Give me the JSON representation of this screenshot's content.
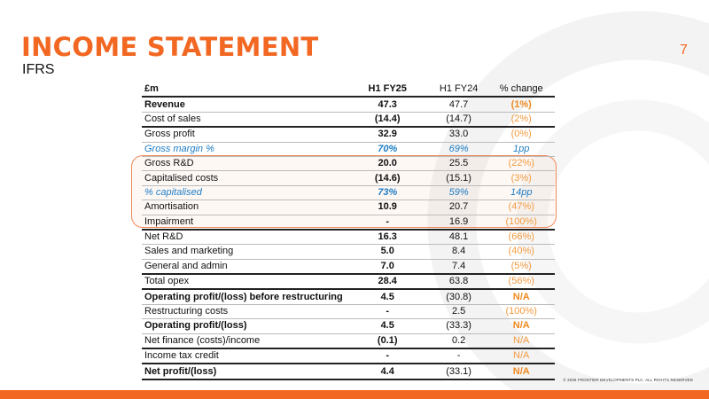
{
  "title": "INCOME STATEMENT",
  "subtitle": "IFRS",
  "page_number": "7",
  "footer": "© 2025 FRONTIER DEVELOPMENTS PLC. ALL RIGHTS RESERVED",
  "colors": {
    "accent": "#F26722",
    "blue": "#1E7CC4",
    "change": "#F39A3E"
  },
  "table": {
    "headers": [
      "£m",
      "H1 FY25",
      "H1 FY24",
      "% change"
    ],
    "rows": [
      {
        "label": "Revenue",
        "fy25": "47.3",
        "fy24": "47.7",
        "change": "(1%)"
      },
      {
        "label": "Cost of sales",
        "fy25": "(14.4)",
        "fy24": "(14.7)",
        "change": "(2%)"
      },
      {
        "label": "Gross profit",
        "fy25": "32.9",
        "fy24": "33.0",
        "change": "(0%)"
      },
      {
        "label": "Gross margin %",
        "fy25": "70%",
        "fy24": "69%",
        "change": "1pp"
      },
      {
        "label": "Gross R&D",
        "fy25": "20.0",
        "fy24": "25.5",
        "change": "(22%)"
      },
      {
        "label": "Capitalised costs",
        "fy25": "(14.6)",
        "fy24": "(15.1)",
        "change": "(3%)"
      },
      {
        "label": "% capitalised",
        "fy25": "73%",
        "fy24": "59%",
        "change": "14pp"
      },
      {
        "label": "Amortisation",
        "fy25": "10.9",
        "fy24": "20.7",
        "change": "(47%)"
      },
      {
        "label": "Impairment",
        "fy25": "-",
        "fy24": "16.9",
        "change": "(100%)"
      },
      {
        "label": "Net R&D",
        "fy25": "16.3",
        "fy24": "48.1",
        "change": "(66%)"
      },
      {
        "label": "Sales and marketing",
        "fy25": "5.0",
        "fy24": "8.4",
        "change": "(40%)"
      },
      {
        "label": "General and admin",
        "fy25": "7.0",
        "fy24": "7.4",
        "change": "(5%)"
      },
      {
        "label": "Total opex",
        "fy25": "28.4",
        "fy24": "63.8",
        "change": "(56%)"
      },
      {
        "label": "Operating profit/(loss) before restructuring",
        "fy25": "4.5",
        "fy24": "(30.8)",
        "change": "N/A"
      },
      {
        "label": "Restructuring costs",
        "fy25": "-",
        "fy24": "2.5",
        "change": "(100%)"
      },
      {
        "label": "Operating profit/(loss)",
        "fy25": "4.5",
        "fy24": "(33.3)",
        "change": "N/A"
      },
      {
        "label": "Net finance (costs)/income",
        "fy25": "(0.1)",
        "fy24": "0.2",
        "change": "N/A"
      },
      {
        "label": "Income tax credit",
        "fy25": "-",
        "fy24": "-",
        "change": "N/A"
      },
      {
        "label": "Net profit/(loss)",
        "fy25": "4.4",
        "fy24": "(33.1)",
        "change": "N/A"
      }
    ]
  }
}
